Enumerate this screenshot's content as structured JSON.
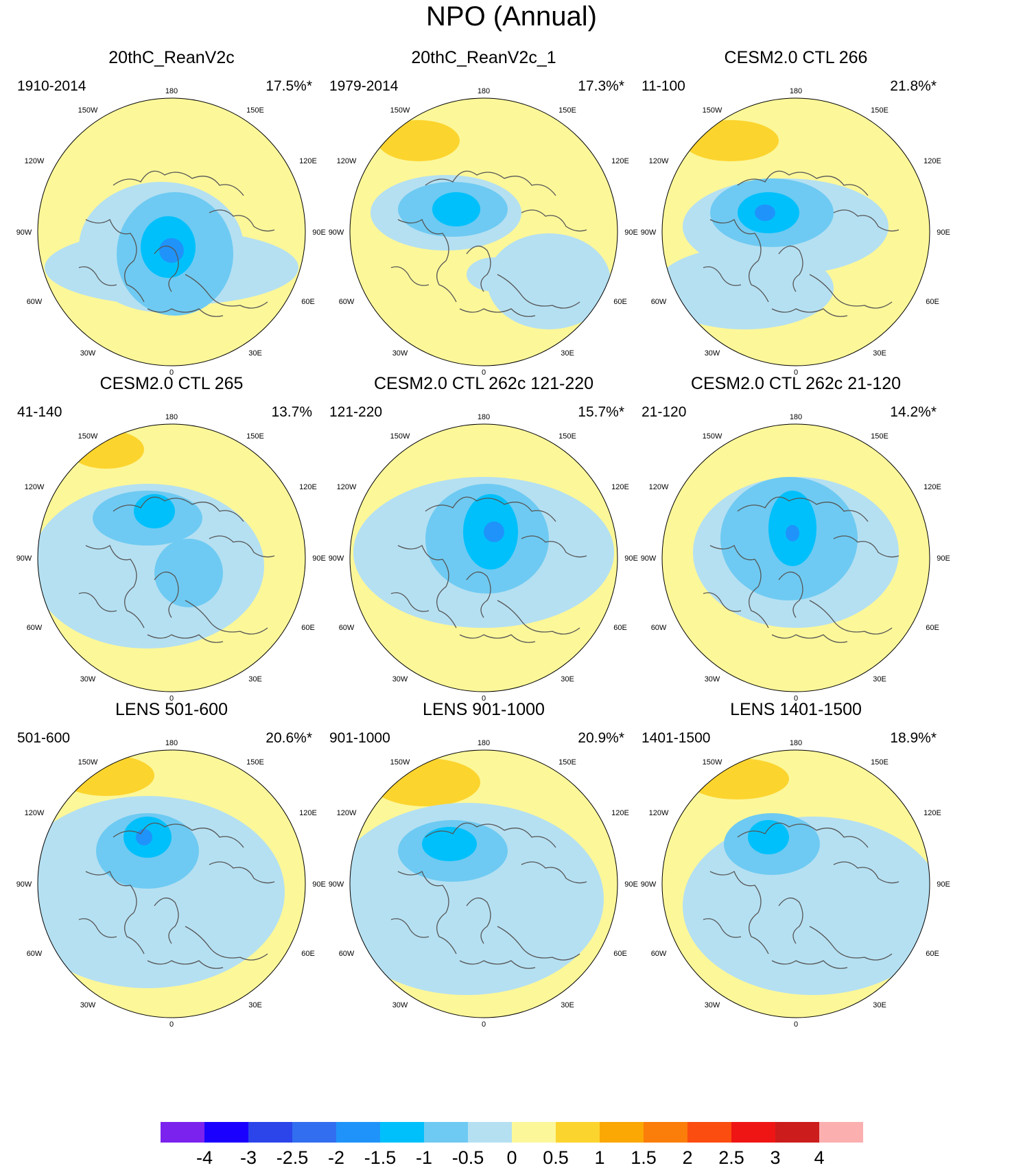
{
  "figure_title": "NPO (Annual)",
  "longitude_labels": {
    "top": "180",
    "left": "90W",
    "right": "90E",
    "bottom": "0",
    "l120": "120W",
    "l150": "150W",
    "r150": "150E",
    "r120": "120E",
    "l60": "60W",
    "l30": "30W",
    "r30": "30E",
    "r60": "60E"
  },
  "panels": [
    {
      "title": "20thC_ReanV2c",
      "period": "1910-2014",
      "variance": "17.5%*"
    },
    {
      "title": "20thC_ReanV2c_1",
      "period": "1979-2014",
      "variance": "17.3%*"
    },
    {
      "title": "CESM2.0 CTL 266",
      "period": "11-100",
      "variance": "21.8%*"
    },
    {
      "title": "CESM2.0 CTL 265",
      "period": "41-140",
      "variance": "13.7%"
    },
    {
      "title": "CESM2.0 CTL 262c 121-220",
      "period": "121-220",
      "variance": "15.7%*"
    },
    {
      "title": "CESM2.0 CTL 262c 21-120",
      "period": "21-120",
      "variance": "14.2%*"
    },
    {
      "title": "LENS 501-600",
      "period": "501-600",
      "variance": "20.6%*"
    },
    {
      "title": "LENS 901-1000",
      "period": "901-1000",
      "variance": "20.9%*"
    },
    {
      "title": "LENS 1401-1500",
      "period": "1401-1500",
      "variance": "18.9%*"
    }
  ],
  "colorbar": {
    "labels": [
      "-4",
      "-3",
      "-2.5",
      "-2",
      "-1.5",
      "-1",
      "-0.5",
      "0",
      "0.5",
      "1",
      "1.5",
      "2",
      "2.5",
      "3",
      "4"
    ],
    "colors": [
      "#7b22ee",
      "#1a00ff",
      "#2b45ea",
      "#316ff0",
      "#1f93fa",
      "#00c0fb",
      "#6ecaf2",
      "#b5e0f2",
      "#fcf799",
      "#fcd42e",
      "#fba704",
      "#fb7d0a",
      "#fb4d10",
      "#f01515",
      "#cc1c1c",
      "#fbafaf"
    ]
  },
  "palette": {
    "land": "#fcf799",
    "c_neg05": "#b5e0f2",
    "c_neg1": "#6ecaf2",
    "c_neg15": "#00c0fb",
    "c_neg2": "#1f93fa",
    "c_pos05": "#fcd42e"
  }
}
